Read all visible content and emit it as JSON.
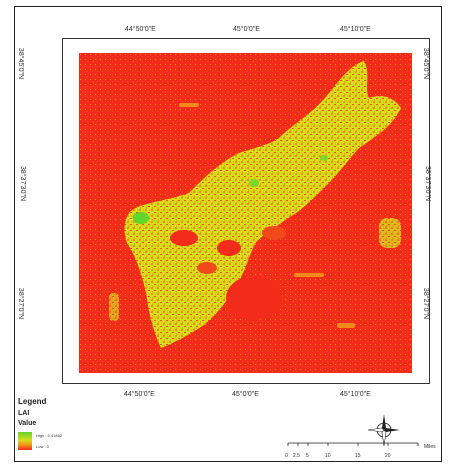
{
  "map": {
    "top_ticks": [
      "44°50'0\"E",
      "45°0'0\"E",
      "45°10'0\"E"
    ],
    "bottom_ticks": [
      "44°50'0\"E",
      "45°0'0\"E",
      "45°10'0\"E"
    ],
    "left_ticks": [
      "38°45'0\"N",
      "38°37'30\"N",
      "38°27'0\"N"
    ],
    "right_ticks": [
      "38°45'0\"N",
      "38°37'30\"N",
      "38°27'0\"N"
    ]
  },
  "legend": {
    "title": "Legend",
    "layer": "LAI",
    "value_label": "Value",
    "high_label": "High : 3.41882",
    "low_label": "Low : 0",
    "colors": {
      "high": "#5fd62a",
      "mid": "#d8de1a",
      "low": "#f22b1a"
    }
  },
  "scale": {
    "labels": [
      "0",
      "2.5",
      "5",
      "10",
      "15",
      "20"
    ],
    "unit": "Miles"
  },
  "north_arrow": {
    "icon": "compass-rose-icon",
    "label": "N"
  }
}
